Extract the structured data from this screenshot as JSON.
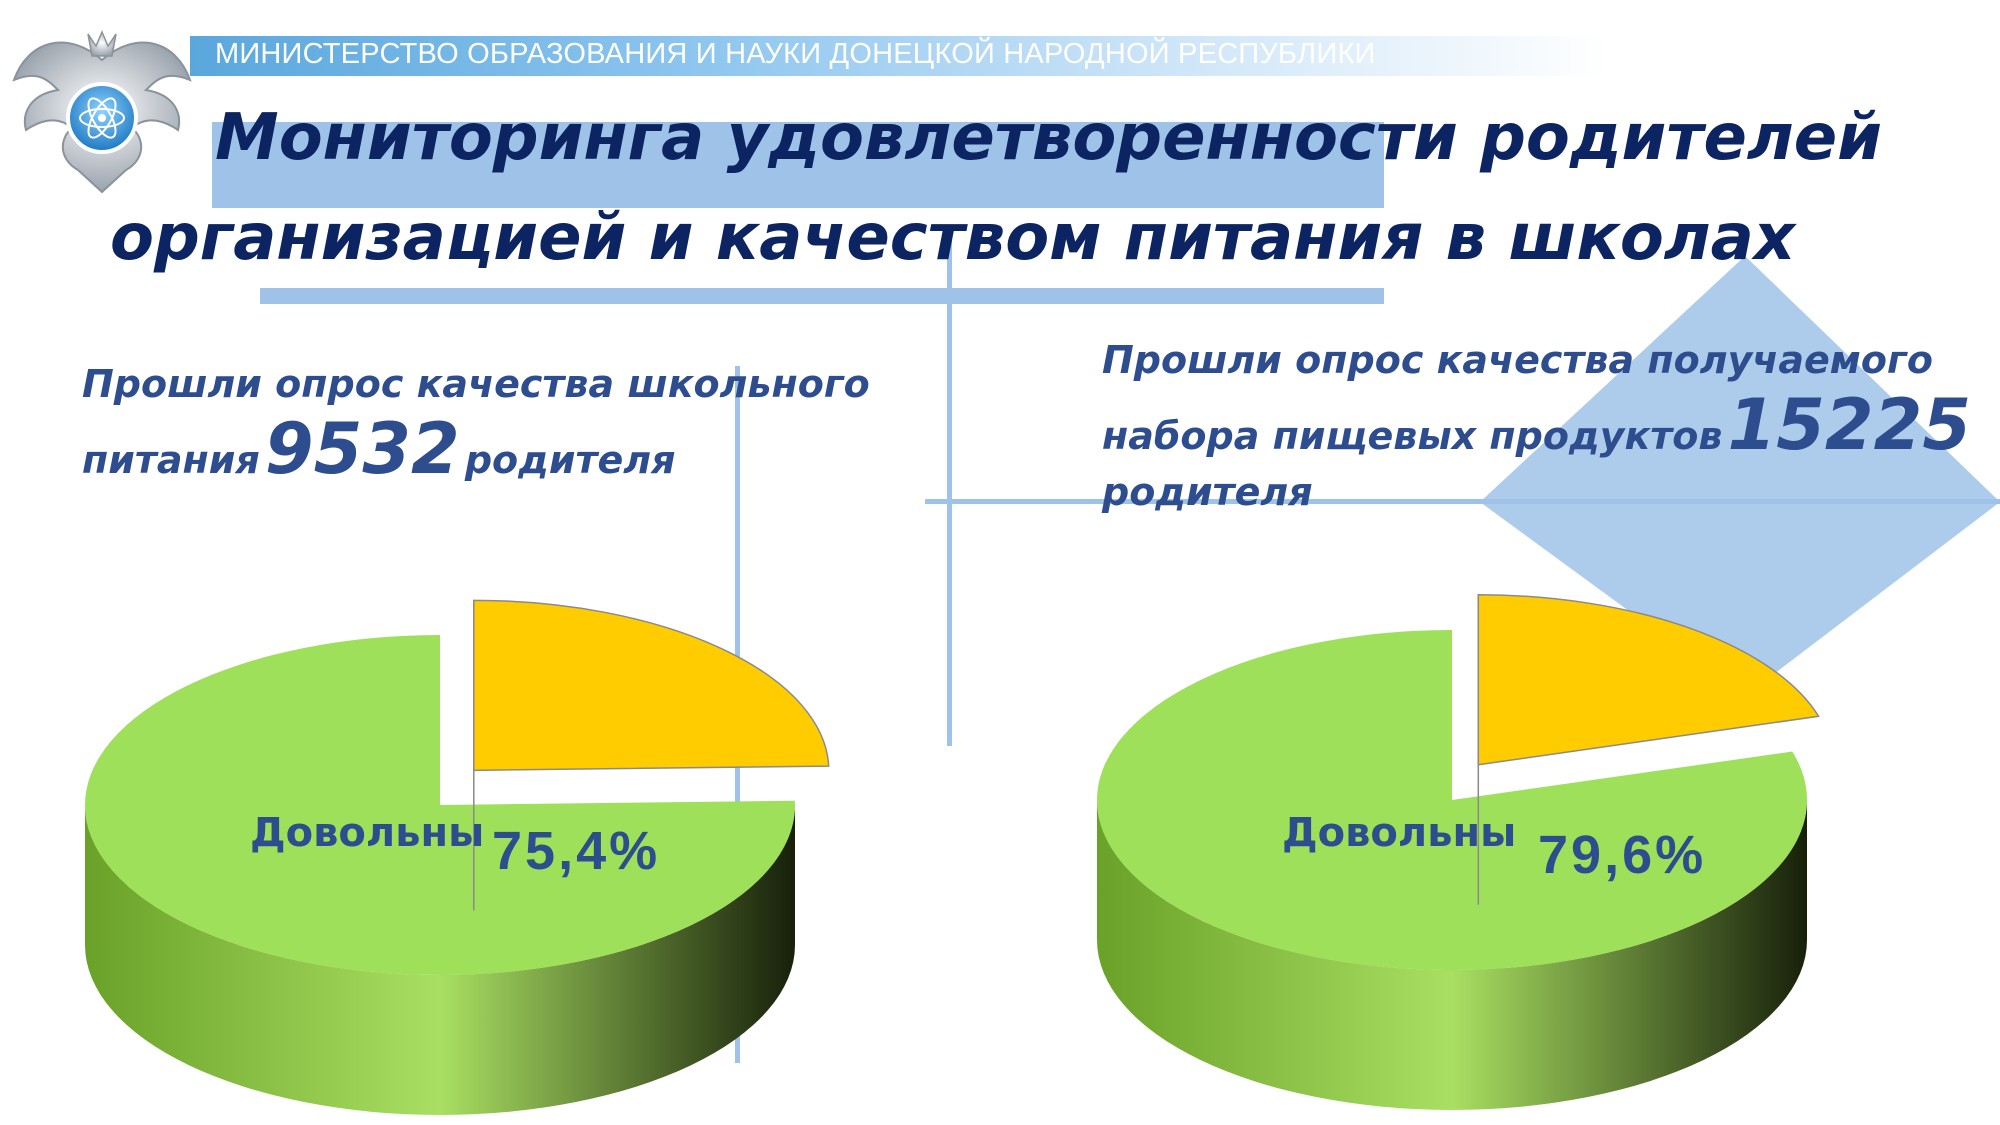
{
  "header": {
    "ministry": "МИНИСТЕРСТВО ОБРАЗОВАНИЯ И НАУКИ ДОНЕЦКОЙ НАРОДНОЙ РЕСПУБЛИКИ",
    "title_line1": "Мониторинга удовлетворенности родителей",
    "title_line2": "организацией и качеством питания в школах",
    "logo_icon": "eagle-emblem-icon"
  },
  "left_block": {
    "line1": "Прошли опрос качества школьного",
    "line2_pre": "питания",
    "count": "9532",
    "line2_post": "родителя"
  },
  "right_block": {
    "line1": "Прошли опрос качества получаемого",
    "line2_pre": "набора пищевых продуктов",
    "count": "15225",
    "line3": "родителя"
  },
  "colors": {
    "satisfied_top": "#9ee05a",
    "satisfied_side": "#6da12a",
    "other_top": "#ffcc00",
    "other_side": "#f2b600",
    "title": "#0c2461",
    "text": "#2e4d8f",
    "decor": "#9fc3e8"
  },
  "chart_data": [
    {
      "type": "pie",
      "series": [
        {
          "label": "Довольны",
          "value": 75.4,
          "value_label": "75,4%"
        },
        {
          "label": "",
          "value": 24.6,
          "value_label": ""
        }
      ]
    },
    {
      "type": "pie",
      "series": [
        {
          "label": "Довольны",
          "value": 79.6,
          "value_label": "79,6%"
        },
        {
          "label": "",
          "value": 20.4,
          "value_label": ""
        }
      ]
    }
  ]
}
